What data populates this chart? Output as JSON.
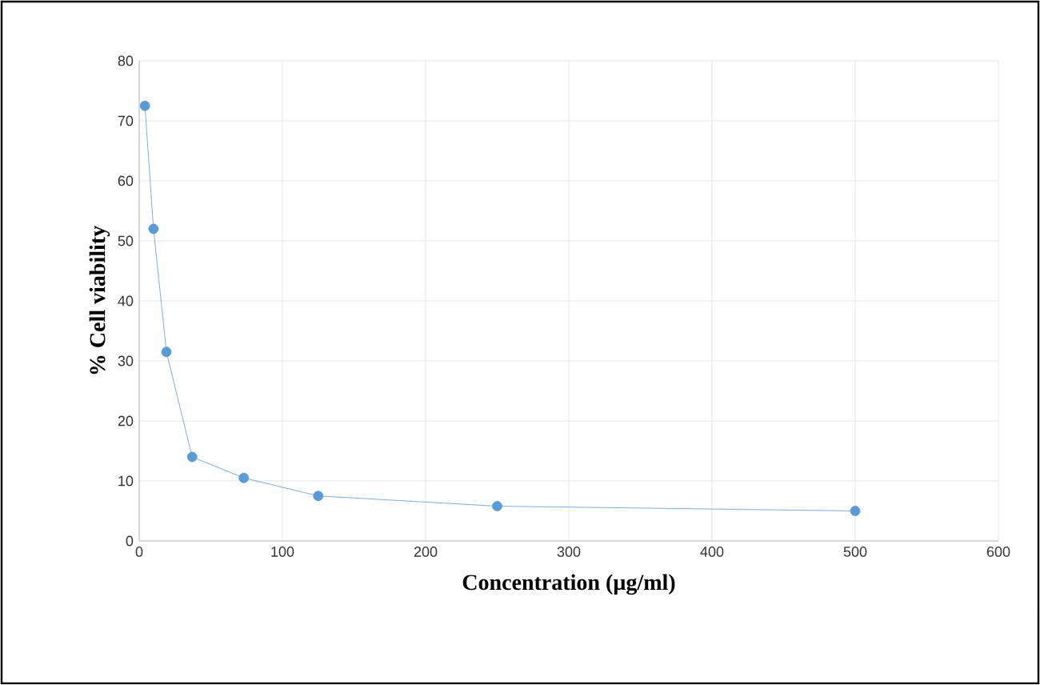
{
  "chart_data": {
    "type": "line",
    "xlabel": "Concentration (µg/ml)",
    "ylabel": "% Cell viability",
    "x": [
      4,
      10,
      19,
      37,
      73,
      125,
      250,
      500
    ],
    "series": [
      {
        "color": "#5b9bd5",
        "values": [
          72.5,
          52,
          31.5,
          14,
          10.5,
          7.5,
          5.8,
          5
        ]
      }
    ],
    "xlim": [
      0,
      600
    ],
    "xticks": [
      0,
      100,
      200,
      300,
      400,
      500,
      600
    ],
    "ylim": [
      0,
      80
    ],
    "yticks": [
      0,
      10,
      20,
      30,
      40,
      50,
      60,
      70,
      80
    ],
    "grid": true,
    "marker": "circle",
    "line_style": "solid"
  }
}
